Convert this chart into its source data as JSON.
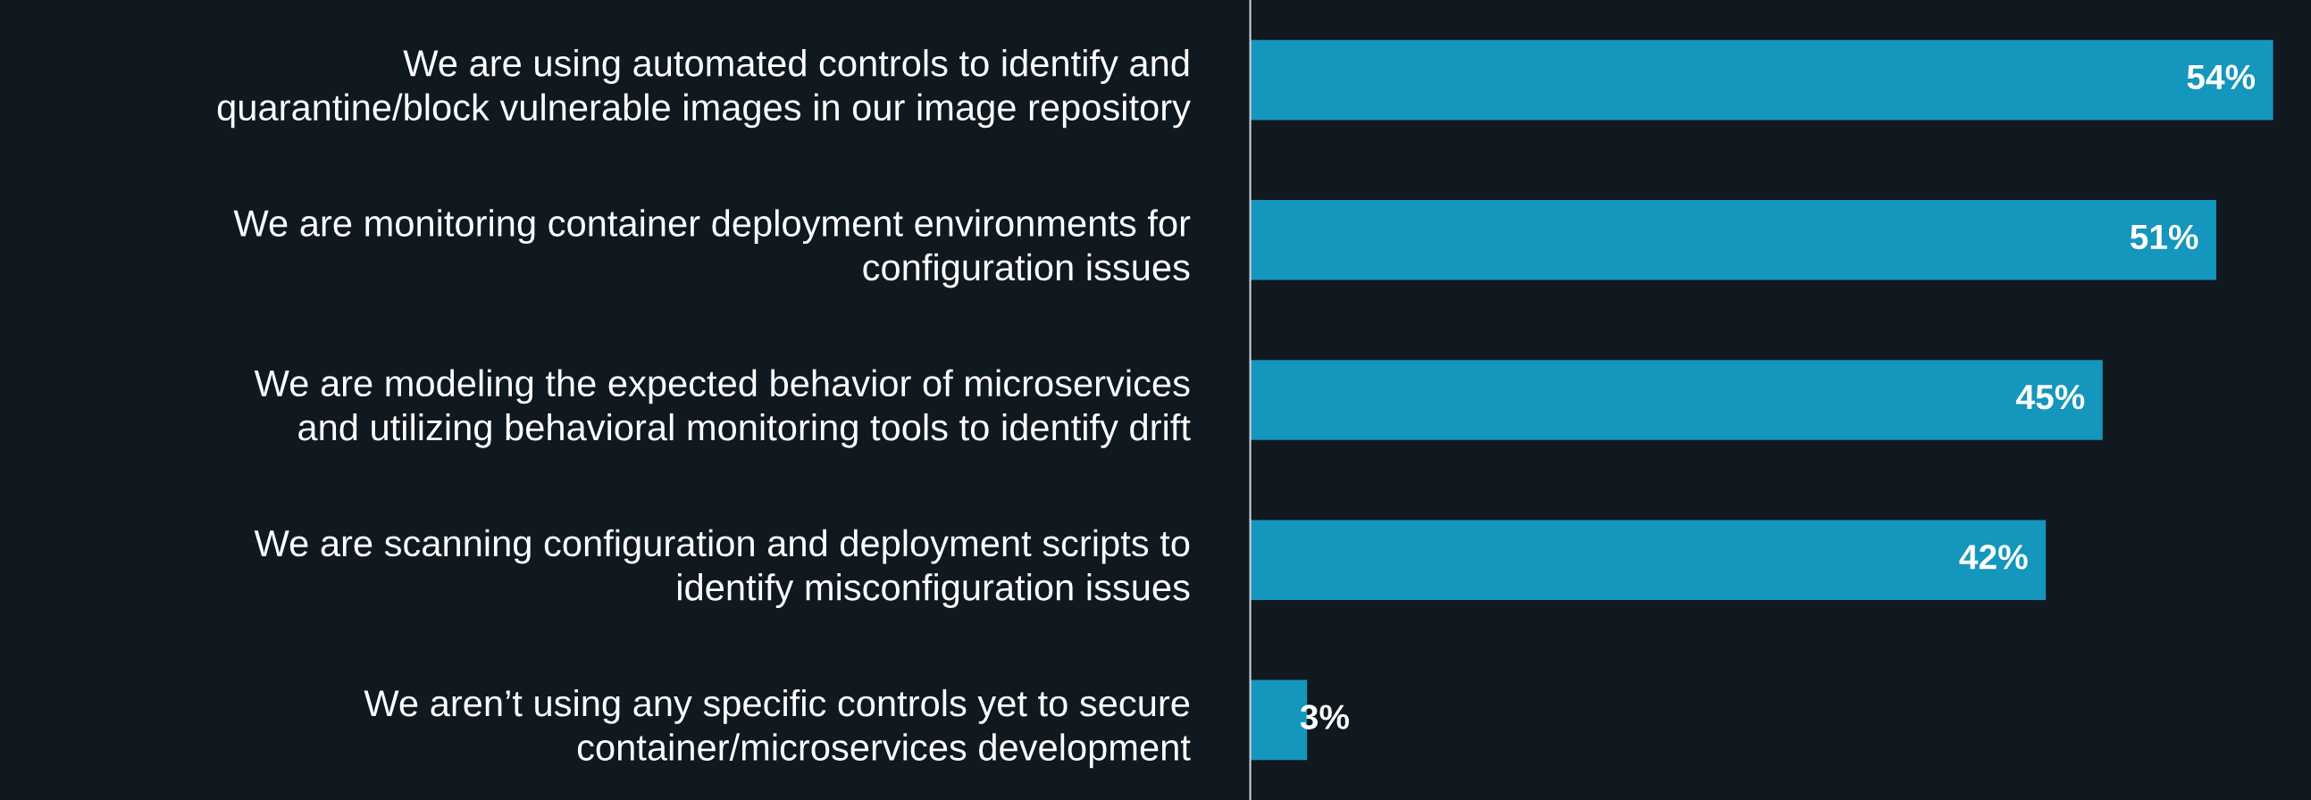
{
  "chart_data": {
    "type": "bar",
    "orientation": "horizontal",
    "categories": [
      "We are using automated controls to identify and\nquarantine/block vulnerable images in our image repository",
      "We are monitoring container deployment environments for\nconfiguration issues",
      "We are modeling the expected behavior of microservices\nand utilizing behavioral monitoring tools to identify drift",
      "We are scanning configuration and deployment scripts to\nidentify misconfiguration issues",
      "We aren’t using any specific controls yet to secure\ncontainer/microservices development"
    ],
    "values": [
      54,
      51,
      45,
      42,
      3
    ],
    "value_labels": [
      "54%",
      "51%",
      "45%",
      "42%",
      "3%"
    ],
    "color": "#1596bc",
    "tick_labels": "y",
    "grid": false,
    "legend": false
  }
}
